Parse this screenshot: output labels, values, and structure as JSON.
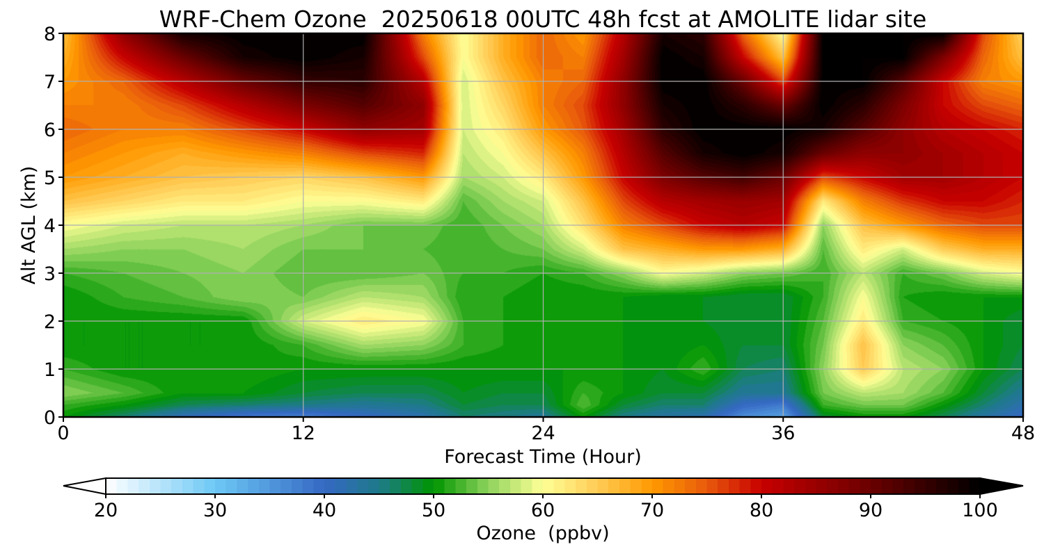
{
  "chart_data": {
    "type": "heatmap",
    "title": "WRF-Chem Ozone  20250618 00UTC 48h fcst at AMOLITE lidar site",
    "xlabel": "Forecast Time (Hour)",
    "ylabel": "Alt AGL (km)",
    "xlim": [
      0,
      48
    ],
    "ylim": [
      0,
      8
    ],
    "xticks": [
      0,
      12,
      24,
      36,
      48
    ],
    "yticks": [
      0,
      1,
      2,
      3,
      4,
      5,
      6,
      7,
      8
    ],
    "grid": true,
    "x_hours": [
      0,
      3,
      6,
      9,
      12,
      15,
      18,
      20,
      22,
      24,
      26,
      28,
      30,
      32,
      34,
      36,
      38,
      40,
      42,
      44,
      46,
      48
    ],
    "y_km": [
      0,
      0.25,
      0.5,
      1,
      1.5,
      2,
      2.5,
      3,
      3.5,
      4,
      4.5,
      5,
      5.5,
      6,
      6.5,
      7,
      7.5,
      8
    ],
    "ozone_ppbv": [
      [
        50,
        46,
        41,
        38,
        37,
        40,
        42,
        46,
        45,
        44,
        50,
        45,
        43,
        42,
        36,
        34,
        48,
        50,
        50,
        47,
        43,
        40
      ],
      [
        52,
        50,
        47,
        46,
        45,
        44,
        45,
        48,
        47,
        47,
        53,
        48,
        46,
        46,
        40,
        38,
        52,
        54,
        54,
        50,
        46,
        42
      ],
      [
        55,
        53,
        50,
        50,
        48,
        47,
        47,
        49,
        48,
        48,
        52,
        50,
        48,
        48,
        44,
        44,
        54,
        57,
        56,
        53,
        48,
        44
      ],
      [
        52,
        50,
        50,
        51,
        50,
        50,
        50,
        50,
        50,
        50,
        50,
        50,
        49,
        52,
        47,
        46,
        55,
        65,
        57,
        55,
        50,
        47
      ],
      [
        50,
        50,
        50,
        50,
        52,
        56,
        55,
        52,
        51,
        50,
        50,
        50,
        49,
        50,
        48,
        48,
        54,
        66,
        55,
        53,
        50,
        48
      ],
      [
        50,
        50,
        50,
        50,
        58,
        62,
        60,
        52,
        51,
        50,
        50,
        50,
        49,
        49,
        48,
        48,
        53,
        62,
        52,
        51,
        50,
        48
      ],
      [
        50,
        52,
        53,
        55,
        54,
        57,
        56,
        51,
        51,
        50,
        50,
        50,
        49,
        49,
        48,
        48,
        52,
        60,
        51,
        50,
        50,
        50
      ],
      [
        52,
        53,
        54,
        55,
        53,
        53,
        54,
        52,
        52,
        51,
        52,
        55,
        60,
        58,
        55,
        54,
        52,
        57,
        52,
        54,
        58,
        60
      ],
      [
        56,
        55,
        55,
        56,
        54,
        54,
        53,
        52,
        53,
        54,
        58,
        66,
        68,
        70,
        70,
        68,
        53,
        62,
        58,
        65,
        68,
        68
      ],
      [
        60,
        58,
        57,
        57,
        56,
        54,
        54,
        52,
        54,
        56,
        63,
        72,
        76,
        80,
        82,
        80,
        55,
        66,
        70,
        74,
        76,
        76
      ],
      [
        66,
        64,
        62,
        62,
        60,
        60,
        62,
        53,
        56,
        58,
        66,
        76,
        82,
        84,
        85,
        84,
        62,
        72,
        77,
        80,
        80,
        78
      ],
      [
        70,
        68,
        66,
        65,
        64,
        66,
        70,
        56,
        58,
        62,
        70,
        80,
        88,
        92,
        94,
        90,
        76,
        80,
        84,
        84,
        82,
        80
      ],
      [
        72,
        70,
        68,
        70,
        72,
        76,
        78,
        57,
        60,
        66,
        72,
        82,
        92,
        98,
        100,
        98,
        90,
        86,
        86,
        84,
        82,
        80
      ],
      [
        74,
        72,
        72,
        76,
        80,
        86,
        84,
        58,
        62,
        70,
        75,
        84,
        96,
        100,
        100,
        100,
        98,
        92,
        86,
        82,
        80,
        78
      ],
      [
        72,
        72,
        76,
        82,
        88,
        92,
        86,
        58,
        64,
        72,
        76,
        86,
        98,
        100,
        96,
        90,
        100,
        96,
        88,
        80,
        76,
        74
      ],
      [
        70,
        74,
        82,
        90,
        95,
        96,
        82,
        58,
        66,
        72,
        74,
        86,
        100,
        100,
        90,
        76,
        100,
        100,
        92,
        80,
        72,
        70
      ],
      [
        68,
        80,
        90,
        98,
        100,
        98,
        76,
        60,
        68,
        74,
        72,
        84,
        100,
        98,
        80,
        66,
        100,
        100,
        100,
        88,
        74,
        66
      ],
      [
        66,
        86,
        98,
        100,
        100,
        100,
        72,
        60,
        68,
        74,
        70,
        82,
        98,
        96,
        74,
        60,
        100,
        100,
        100,
        100,
        76,
        64
      ]
    ],
    "colorbar": {
      "label": "Ozone  (ppbv)",
      "min": 20,
      "max": 100,
      "ticks": [
        20,
        30,
        40,
        50,
        60,
        70,
        80,
        90,
        100
      ],
      "extend": "both",
      "under_color": "#ffffff",
      "over_color": "#000000",
      "color_stops": [
        [
          20,
          "#ffffff"
        ],
        [
          30,
          "#6dc8f5"
        ],
        [
          40,
          "#3568c4"
        ],
        [
          45,
          "#1e7a8a"
        ],
        [
          50,
          "#009500"
        ],
        [
          55,
          "#8ed35c"
        ],
        [
          60,
          "#ffff96"
        ],
        [
          65,
          "#ffcc55"
        ],
        [
          70,
          "#ff9900"
        ],
        [
          75,
          "#e85a0c"
        ],
        [
          80,
          "#c80000"
        ],
        [
          90,
          "#6a0000"
        ],
        [
          100,
          "#000000"
        ]
      ]
    }
  }
}
